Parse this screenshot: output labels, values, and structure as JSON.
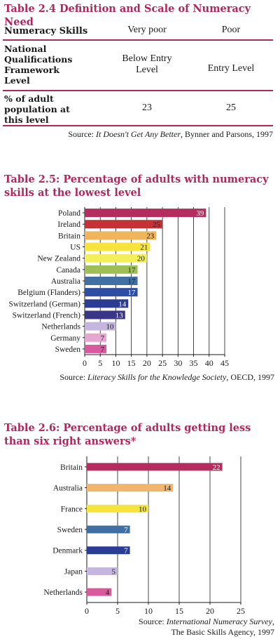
{
  "table_2_4": {
    "title": "Table 2.4  Definition and Scale of Numeracy Need",
    "header": {
      "col0": "Numeracy Skills",
      "col1": "Very poor",
      "col2": "Poor"
    },
    "rows": [
      {
        "label": "National Qualifications Framework Level",
        "col1": "Below Entry Level",
        "col2": "Entry Level"
      },
      {
        "label": "% of adult population at this level",
        "col1": "23",
        "col2": "25"
      }
    ],
    "source_prefix": "Source: ",
    "source_title": "It Doesn't Get Any Better",
    "source_suffix": ", Bynner and Parsons, 1997"
  },
  "table_2_5": {
    "title": "Table 2.5:  Percentage of adults with numeracy skills at the lowest level",
    "source_prefix": "Source: ",
    "source_title": "Literacy Skills for the Knowledge Society",
    "source_suffix": ", OECD, 1997"
  },
  "table_2_6": {
    "title": "Table 2.6:  Percentage of adults getting less than six right answers*",
    "source_line1_prefix": "Source: ",
    "source_line1_title": "International Numeracy Survey",
    "source_line1_suffix": ",",
    "source_line2": "The Basic Skills Agency, 1997"
  },
  "chart_data": [
    {
      "type": "bar",
      "orientation": "horizontal",
      "categories": [
        "Poland",
        "Ireland",
        "Britain",
        "US",
        "New Zealand",
        "Canada",
        "Australia",
        "Belgium (Flanders)",
        "Switzerland (German)",
        "Switzerland (French)",
        "Netherlands",
        "Germany",
        "Sweden"
      ],
      "values": [
        39,
        25,
        23,
        21,
        20,
        17,
        17,
        17,
        14,
        13,
        10,
        7,
        7
      ],
      "colors": [
        "#b52d5e",
        "#c43238",
        "#f0b45a",
        "#f6e43d",
        "#f2ef5a",
        "#9fbe55",
        "#3f6fa3",
        "#2e4ea6",
        "#2a3c94",
        "#3b3588",
        "#c5b6df",
        "#e6a6cf",
        "#d85a9c"
      ],
      "label_colors": [
        "#ffffff",
        "#3a1a1a",
        "#1a1a1a",
        "#1a1a1a",
        "#1a1a1a",
        "#1a1a1a",
        "#1a1a1a",
        "#ffffff",
        "#ffffff",
        "#ffffff",
        "#1a1a1a",
        "#1a1a1a",
        "#1a1a1a"
      ],
      "xticks": [
        0,
        5,
        10,
        15,
        20,
        25,
        30,
        35,
        40,
        45
      ],
      "xlim": [
        0,
        45
      ],
      "grid": true
    },
    {
      "type": "bar",
      "orientation": "horizontal",
      "categories": [
        "Britain",
        "Australia",
        "France",
        "Sweden",
        "Denmark",
        "Japan",
        "Netherlands"
      ],
      "values": [
        22,
        14,
        10,
        7,
        7,
        5,
        4
      ],
      "colors": [
        "#b52d5e",
        "#f2b56e",
        "#f6e43d",
        "#3f6fa3",
        "#2a3c94",
        "#c5b6df",
        "#d85a9c"
      ],
      "label_colors": [
        "#ffffff",
        "#1a1a1a",
        "#1a1a1a",
        "#ffffff",
        "#ffffff",
        "#1a1a1a",
        "#1a1a1a"
      ],
      "xticks": [
        0,
        5,
        10,
        15,
        20,
        25
      ],
      "xlim": [
        0,
        25
      ],
      "grid": true
    }
  ]
}
